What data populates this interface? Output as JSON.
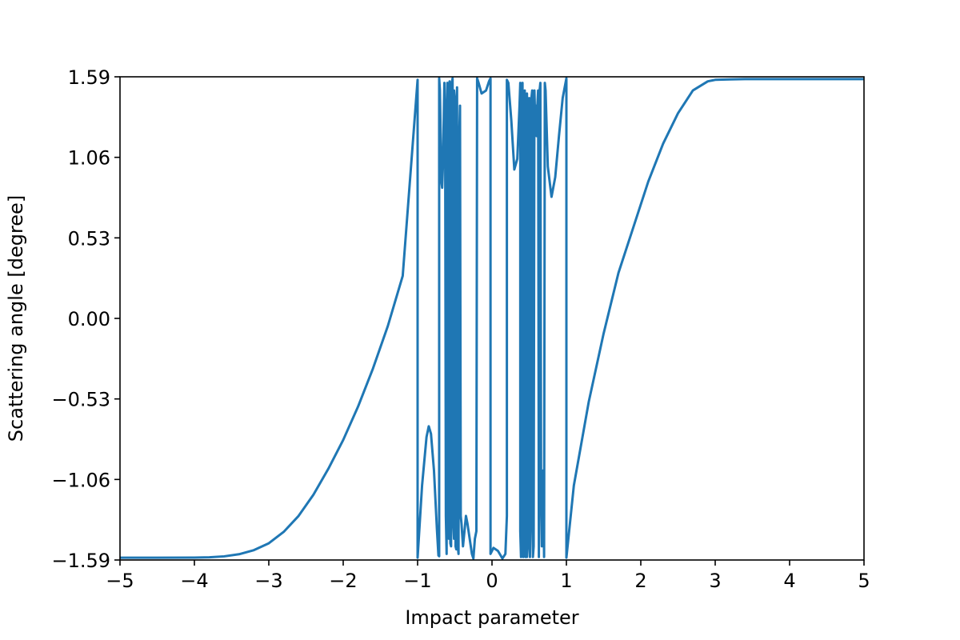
{
  "chart_data": {
    "type": "line",
    "title": "",
    "xlabel": "Impact parameter",
    "ylabel": "Scattering angle [degree]",
    "xlim": [
      -5,
      5
    ],
    "ylim": [
      -1.59,
      1.59
    ],
    "x_ticks": [
      -5,
      -4,
      -3,
      -2,
      -1,
      0,
      1,
      2,
      3,
      4,
      5
    ],
    "x_tick_labels": [
      "−5",
      "−4",
      "−3",
      "−2",
      "−1",
      "0",
      "1",
      "2",
      "3",
      "4",
      "5"
    ],
    "y_ticks": [
      -1.59,
      -1.06,
      -0.53,
      0.0,
      0.53,
      1.06,
      1.59
    ],
    "y_tick_labels": [
      "−1.59",
      "−1.06",
      "−0.53",
      "0.00",
      "0.53",
      "1.06",
      "1.59"
    ],
    "grid": false,
    "line_color": "#1f77b4",
    "series": [
      {
        "x": [
          -5.0,
          -4.5,
          -4.0,
          -3.8,
          -3.6,
          -3.4,
          -3.2,
          -3.0,
          -2.8,
          -2.6,
          -2.4,
          -2.2,
          -2.0,
          -1.8,
          -1.6,
          -1.4,
          -1.2,
          -1.0,
          -1.0,
          -0.94,
          -0.88,
          -0.85,
          -0.82,
          -0.78,
          -0.74,
          -0.72,
          -0.71,
          -0.71,
          -0.7,
          -0.68,
          -0.67,
          -0.66,
          -0.64,
          -0.63,
          -0.62,
          -0.61,
          -0.6,
          -0.6,
          -0.59,
          -0.58,
          -0.57,
          -0.56,
          -0.56,
          -0.55,
          -0.54,
          -0.53,
          -0.52,
          -0.51,
          -0.51,
          -0.5,
          -0.49,
          -0.48,
          -0.47,
          -0.47,
          -0.46,
          -0.45,
          -0.44,
          -0.43,
          -0.42,
          -0.41,
          -0.39,
          -0.37,
          -0.35,
          -0.33,
          -0.3,
          -0.27,
          -0.25,
          -0.23,
          -0.21,
          -0.2,
          -0.2,
          -0.18,
          -0.14,
          -0.08,
          -0.04,
          -0.02,
          -0.02,
          0.02,
          0.08,
          0.14,
          0.18,
          0.2,
          0.2,
          0.22,
          0.26,
          0.3,
          0.34,
          0.37,
          0.38,
          0.38,
          0.39,
          0.4,
          0.41,
          0.42,
          0.42,
          0.43,
          0.44,
          0.45,
          0.46,
          0.47,
          0.47,
          0.48,
          0.49,
          0.5,
          0.51,
          0.51,
          0.52,
          0.53,
          0.54,
          0.55,
          0.55,
          0.56,
          0.57,
          0.58,
          0.59,
          0.6,
          0.61,
          0.62,
          0.63,
          0.63,
          0.64,
          0.65,
          0.66,
          0.67,
          0.68,
          0.69,
          0.7,
          0.71,
          0.72,
          0.75,
          0.8,
          0.85,
          0.9,
          0.95,
          1.0,
          1.0,
          1.1,
          1.3,
          1.5,
          1.7,
          1.9,
          2.1,
          2.3,
          2.5,
          2.7,
          2.9,
          3.0,
          3.2,
          3.4,
          3.6,
          3.8,
          4.0,
          4.5,
          5.0
        ],
        "y": [
          -1.575,
          -1.575,
          -1.574,
          -1.572,
          -1.566,
          -1.552,
          -1.525,
          -1.48,
          -1.405,
          -1.3,
          -1.16,
          -0.99,
          -0.8,
          -0.58,
          -0.33,
          -0.05,
          0.28,
          1.57,
          -1.575,
          -1.1,
          -0.78,
          -0.71,
          -0.76,
          -1.0,
          -1.39,
          -1.56,
          -1.565,
          1.58,
          1.5,
          0.9,
          0.86,
          1.0,
          1.55,
          1.4,
          -1.3,
          -1.55,
          1.55,
          1.5,
          -1.0,
          -1.45,
          1.56,
          1.2,
          -1.48,
          -1.5,
          1.55,
          1.58,
          -1.35,
          -1.45,
          1.5,
          1.45,
          -1.5,
          -1.52,
          1.52,
          1.5,
          -1.5,
          -1.55,
          1.2,
          1.4,
          -1.3,
          -1.35,
          -1.5,
          -1.4,
          -1.3,
          -1.35,
          -1.45,
          -1.55,
          -1.58,
          -1.45,
          -1.4,
          1.58,
          1.58,
          1.55,
          1.48,
          1.5,
          1.56,
          1.58,
          -1.55,
          -1.51,
          -1.53,
          -1.58,
          -1.55,
          -1.3,
          1.57,
          1.55,
          1.3,
          0.98,
          1.05,
          1.4,
          1.55,
          -1.4,
          -1.57,
          1.4,
          1.55,
          -1.3,
          -1.57,
          1.2,
          1.5,
          -1.57,
          1.45,
          1.48,
          -1.57,
          -1.5,
          1.35,
          1.45,
          -1.4,
          -1.57,
          -1.35,
          1.45,
          1.5,
          1.2,
          -1.57,
          -1.5,
          1.5,
          1.3,
          1.4,
          1.2,
          1.4,
          1.5,
          -1.57,
          -1.57,
          1.5,
          1.55,
          -1.2,
          -1.5,
          -1.3,
          -1.0,
          -1.57,
          1.55,
          1.5,
          1.0,
          0.8,
          0.93,
          1.2,
          1.45,
          1.58,
          -1.575,
          -1.1,
          -0.55,
          -0.1,
          0.3,
          0.6,
          0.9,
          1.15,
          1.35,
          1.5,
          1.56,
          1.57,
          1.573,
          1.575,
          1.575,
          1.575,
          1.575,
          1.575,
          1.575
        ]
      }
    ]
  }
}
